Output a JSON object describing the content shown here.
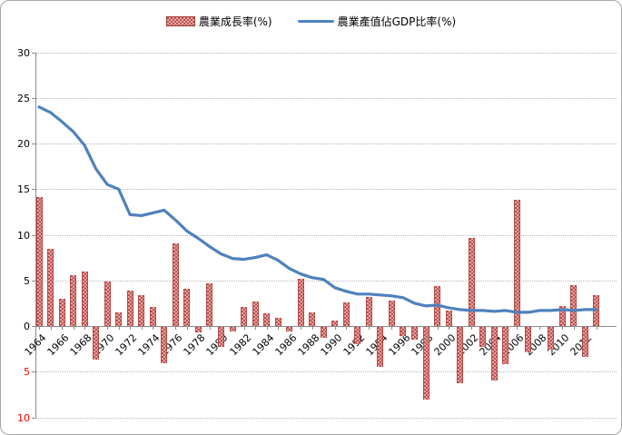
{
  "legend": {
    "bar_series_label": "農業成長率(%)",
    "line_series_label": "農業產值佔GDP比率(%)"
  },
  "colors": {
    "bar": "#c0504d",
    "line": "#4f81bd",
    "gridline": "#b5b5b5",
    "axis": "#8c8c8c",
    "negative_tick_label": "#ff0000"
  },
  "y_axis": {
    "ticks": [
      {
        "value": 30,
        "label": "30",
        "negative": false
      },
      {
        "value": 25,
        "label": "25",
        "negative": false
      },
      {
        "value": 20,
        "label": "20",
        "negative": false
      },
      {
        "value": 15,
        "label": "15",
        "negative": false
      },
      {
        "value": 10,
        "label": "10",
        "negative": false
      },
      {
        "value": 5,
        "label": "5",
        "negative": false
      },
      {
        "value": 0,
        "label": "0",
        "negative": false
      },
      {
        "value": -5,
        "label": "5",
        "negative": true
      },
      {
        "value": -10,
        "label": "10",
        "negative": true
      }
    ]
  },
  "x_axis": {
    "visible_labels": [
      "1964",
      "1966",
      "1968",
      "1970",
      "1972",
      "1974",
      "1976",
      "1978",
      "1980",
      "1982",
      "1984",
      "1986",
      "1988",
      "1990",
      "1992",
      "1994",
      "1996",
      "1998",
      "2000",
      "2002",
      "2004",
      "2006",
      "2008",
      "2010",
      "2012"
    ]
  },
  "chart_data": {
    "type": "combo",
    "x": [
      1964,
      1965,
      1966,
      1967,
      1968,
      1969,
      1970,
      1971,
      1972,
      1973,
      1974,
      1975,
      1976,
      1977,
      1978,
      1979,
      1980,
      1981,
      1982,
      1983,
      1984,
      1985,
      1986,
      1987,
      1988,
      1989,
      1990,
      1991,
      1992,
      1993,
      1994,
      1995,
      1996,
      1997,
      1998,
      1999,
      2000,
      2001,
      2002,
      2003,
      2004,
      2005,
      2006,
      2007,
      2008,
      2009,
      2010,
      2011,
      2012,
      2013
    ],
    "series": [
      {
        "name": "農業成長率(%)",
        "type": "bar",
        "values": [
          14.1,
          8.5,
          3.0,
          5.6,
          6.0,
          -3.6,
          4.9,
          1.5,
          3.9,
          3.4,
          2.1,
          -4.0,
          9.1,
          4.1,
          -0.6,
          4.7,
          -2.2,
          -0.5,
          2.1,
          2.7,
          1.4,
          0.9,
          -0.5,
          5.2,
          1.5,
          -1.2,
          0.6,
          2.6,
          -1.9,
          3.2,
          -4.4,
          2.8,
          -1.0,
          -1.4,
          -8.0,
          4.4,
          1.7,
          -6.2,
          9.7,
          -2.2,
          -5.9,
          -4.1,
          13.8,
          -2.8,
          0.0,
          -2.5,
          2.2,
          4.5,
          -3.3,
          3.4
        ]
      },
      {
        "name": "農業產值佔GDP比率(%)",
        "type": "line",
        "values": [
          24.0,
          23.4,
          22.4,
          21.3,
          19.8,
          17.2,
          15.5,
          15.0,
          12.2,
          12.1,
          12.4,
          12.7,
          11.6,
          10.4,
          9.6,
          8.7,
          7.9,
          7.4,
          7.3,
          7.5,
          7.8,
          7.2,
          6.3,
          5.7,
          5.3,
          5.1,
          4.2,
          3.8,
          3.5,
          3.5,
          3.4,
          3.3,
          3.1,
          2.5,
          2.2,
          2.3,
          2.0,
          1.8,
          1.7,
          1.7,
          1.6,
          1.7,
          1.5,
          1.5,
          1.7,
          1.7,
          1.8,
          1.7,
          1.8,
          1.8
        ]
      }
    ],
    "title": "",
    "xlabel": "",
    "ylabel": "",
    "ylim": [
      -10,
      30
    ],
    "grid": true,
    "legend_position": "top-center"
  }
}
